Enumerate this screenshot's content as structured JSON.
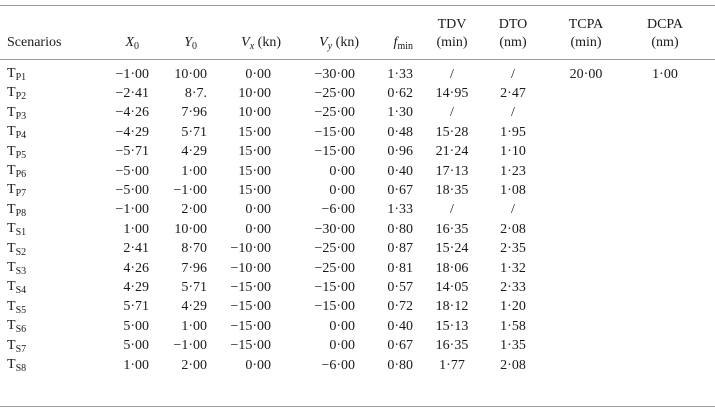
{
  "table": {
    "headers": {
      "scenarios": "Scenarios",
      "x0": {
        "sym": "X",
        "sub": "0"
      },
      "y0": {
        "sym": "Y",
        "sub": "0"
      },
      "vx": {
        "sym": "V",
        "sub": "x",
        "unit": " (kn)"
      },
      "vy": {
        "sym": "V",
        "sub": "y",
        "unit": " (kn)"
      },
      "fmin": {
        "sym": "f",
        "sub": "min"
      },
      "tdv": {
        "line1": "TDV",
        "line2": "(min)"
      },
      "dto": {
        "line1": "DTO",
        "line2": "(nm)"
      },
      "tcpa": {
        "line1": "TCPA",
        "line2": "(min)"
      },
      "dcpa": {
        "line1": "DCPA",
        "line2": "(nm)"
      }
    },
    "rows": [
      {
        "t": "T",
        "s": "P1",
        "x0": "−1·00",
        "y0": "10·00",
        "vx": "0·00",
        "vy": "−30·00",
        "fmin": "1·33",
        "tdv": "/",
        "dto": "/",
        "tcpa": "20·00",
        "dcpa": "1·00"
      },
      {
        "t": "T",
        "s": "P2",
        "x0": "−2·41",
        "y0": "8·7.",
        "vx": "10·00",
        "vy": "−25·00",
        "fmin": "0·62",
        "tdv": "14·95",
        "dto": "2·47",
        "tcpa": "",
        "dcpa": ""
      },
      {
        "t": "T",
        "s": "P3",
        "x0": "−4·26",
        "y0": "7·96",
        "vx": "10·00",
        "vy": "−25·00",
        "fmin": "1·30",
        "tdv": "/",
        "dto": "/",
        "tcpa": "",
        "dcpa": ""
      },
      {
        "t": "T",
        "s": "P4",
        "x0": "−4·29",
        "y0": "5·71",
        "vx": "15·00",
        "vy": "−15·00",
        "fmin": "0·48",
        "tdv": "15·28",
        "dto": "1·95",
        "tcpa": "",
        "dcpa": ""
      },
      {
        "t": "T",
        "s": "P5",
        "x0": "−5·71",
        "y0": "4·29",
        "vx": "15·00",
        "vy": "−15·00",
        "fmin": "0·96",
        "tdv": "21·24",
        "dto": "1·10",
        "tcpa": "",
        "dcpa": ""
      },
      {
        "t": "T",
        "s": "P6",
        "x0": "−5·00",
        "y0": "1·00",
        "vx": "15·00",
        "vy": "0·00",
        "fmin": "0·40",
        "tdv": "17·13",
        "dto": "1·23",
        "tcpa": "",
        "dcpa": ""
      },
      {
        "t": "T",
        "s": "P7",
        "x0": "−5·00",
        "y0": "−1·00",
        "vx": "15·00",
        "vy": "0·00",
        "fmin": "0·67",
        "tdv": "18·35",
        "dto": "1·08",
        "tcpa": "",
        "dcpa": ""
      },
      {
        "t": "T",
        "s": "P8",
        "x0": "−1·00",
        "y0": "2·00",
        "vx": "0·00",
        "vy": "−6·00",
        "fmin": "1·33",
        "tdv": "/",
        "dto": "/",
        "tcpa": "",
        "dcpa": ""
      },
      {
        "t": "T",
        "s": "S1",
        "x0": "1·00",
        "y0": "10·00",
        "vx": "0·00",
        "vy": "−30·00",
        "fmin": "0·80",
        "tdv": "16·35",
        "dto": "2·08",
        "tcpa": "",
        "dcpa": ""
      },
      {
        "t": "T",
        "s": "S2",
        "x0": "2·41",
        "y0": "8·70",
        "vx": "−10·00",
        "vy": "−25·00",
        "fmin": "0·87",
        "tdv": "15·24",
        "dto": "2·35",
        "tcpa": "",
        "dcpa": ""
      },
      {
        "t": "T",
        "s": "S3",
        "x0": "4·26",
        "y0": "7·96",
        "vx": "−10·00",
        "vy": "−25·00",
        "fmin": "0·81",
        "tdv": "18·06",
        "dto": "1·32",
        "tcpa": "",
        "dcpa": ""
      },
      {
        "t": "T",
        "s": "S4",
        "x0": "4·29",
        "y0": "5·71",
        "vx": "−15·00",
        "vy": "−15·00",
        "fmin": "0·57",
        "tdv": "14·05",
        "dto": "2·33",
        "tcpa": "",
        "dcpa": ""
      },
      {
        "t": "T",
        "s": "S5",
        "x0": "5·71",
        "y0": "4·29",
        "vx": "−15·00",
        "vy": "−15·00",
        "fmin": "0·72",
        "tdv": "18·12",
        "dto": "1·20",
        "tcpa": "",
        "dcpa": ""
      },
      {
        "t": "T",
        "s": "S6",
        "x0": "5·00",
        "y0": "1·00",
        "vx": "−15·00",
        "vy": "0·00",
        "fmin": "0·40",
        "tdv": "15·13",
        "dto": "1·58",
        "tcpa": "",
        "dcpa": ""
      },
      {
        "t": "T",
        "s": "S7",
        "x0": "5·00",
        "y0": "−1·00",
        "vx": "−15·00",
        "vy": "0·00",
        "fmin": "0·67",
        "tdv": "16·35",
        "dto": "1·35",
        "tcpa": "",
        "dcpa": ""
      },
      {
        "t": "T",
        "s": "S8",
        "x0": "1·00",
        "y0": "2·00",
        "vx": "0·00",
        "vy": "−6·00",
        "fmin": "0·80",
        "tdv": "1·77",
        "dto": "2·08",
        "tcpa": "",
        "dcpa": ""
      }
    ]
  }
}
